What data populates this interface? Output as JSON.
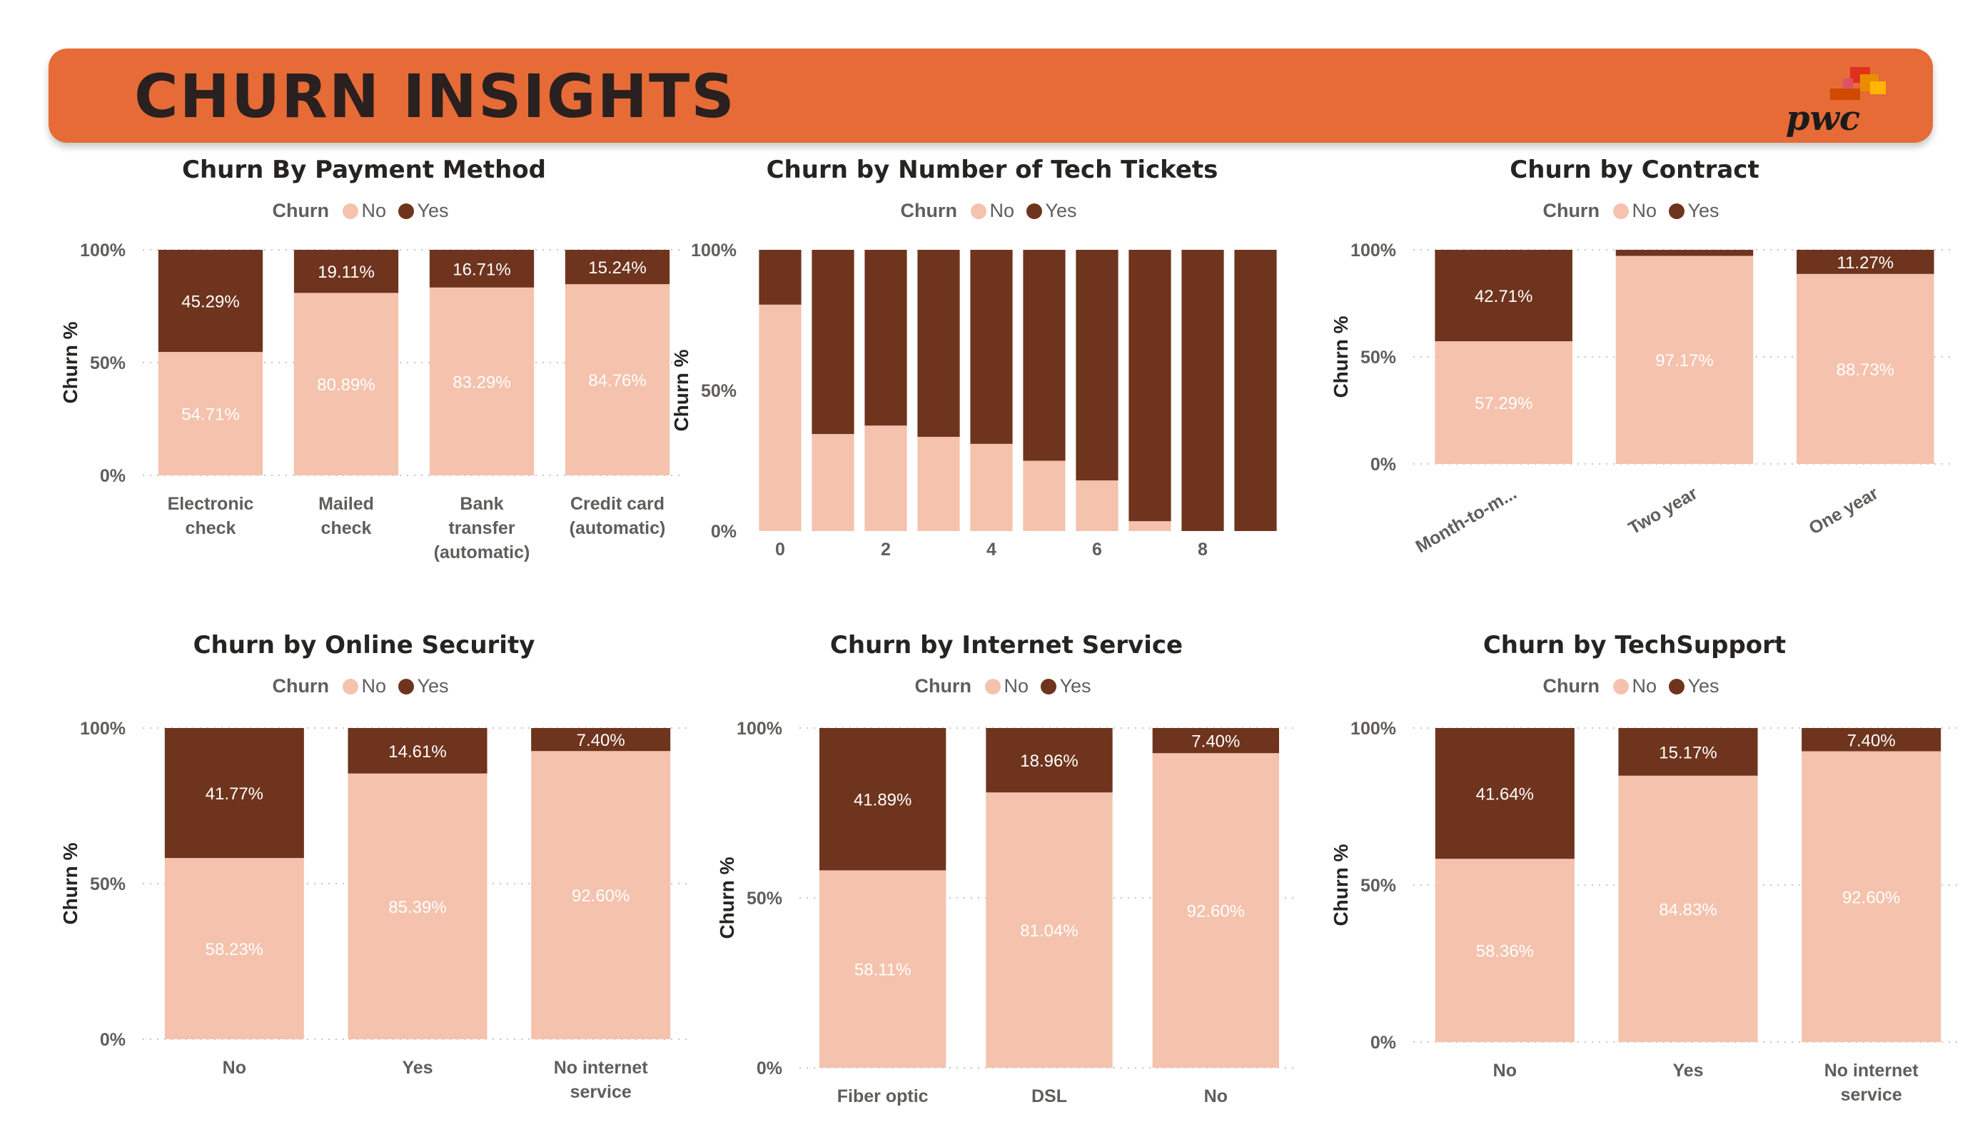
{
  "page": {
    "title": "CHURN INSIGHTS",
    "logo_text": "pwc"
  },
  "colors": {
    "header": "#e66b36",
    "no": "#f4c2ad",
    "yes": "#6f341d",
    "axis_text": "#605e5c"
  },
  "chart_data": [
    {
      "id": "payment",
      "type": "bar",
      "stacked": "100%",
      "title": "Churn By Payment Method",
      "legend_title": "Churn",
      "legend_position": "top-center",
      "ylabel": "Churn %",
      "yticks": [
        "0%",
        "50%",
        "100%"
      ],
      "ylim": [
        0,
        100
      ],
      "grid": "dotted-horizontal",
      "categories": [
        "Electronic check",
        "Mailed check",
        "Bank transfer (automatic)",
        "Credit card (automatic)"
      ],
      "category_lines": [
        [
          "Electronic",
          "check"
        ],
        [
          "Mailed",
          "check"
        ],
        [
          "Bank",
          "transfer",
          "(automatic)"
        ],
        [
          "Credit card",
          "(automatic)"
        ]
      ],
      "series": [
        {
          "name": "No",
          "values": [
            54.71,
            80.89,
            83.29,
            84.76
          ],
          "labels": [
            "54.71%",
            "80.89%",
            "83.29%",
            "84.76%"
          ]
        },
        {
          "name": "Yes",
          "values": [
            45.29,
            19.11,
            16.71,
            15.24
          ],
          "labels": [
            "45.29%",
            "19.11%",
            "16.71%",
            "15.24%"
          ]
        }
      ]
    },
    {
      "id": "tickets",
      "type": "bar",
      "stacked": "100%",
      "title": "Churn by Number of Tech Tickets",
      "legend_title": "Churn",
      "legend_position": "top-center",
      "ylabel": "Churn %",
      "yticks": [
        "0%",
        "50%",
        "100%"
      ],
      "ylim": [
        0,
        100
      ],
      "grid": "none",
      "categories": [
        "0",
        "1",
        "2",
        "3",
        "4",
        "5",
        "6",
        "7",
        "8",
        "9"
      ],
      "xticks_shown": [
        "0",
        "2",
        "4",
        "6",
        "8"
      ],
      "series": [
        {
          "name": "No",
          "values": [
            80.5,
            34.5,
            37.5,
            33.5,
            31,
            25,
            18,
            3.5,
            0,
            0
          ]
        },
        {
          "name": "Yes",
          "values": [
            19.5,
            65.5,
            62.5,
            66.5,
            69,
            75,
            82,
            96.5,
            100,
            100
          ]
        }
      ]
    },
    {
      "id": "contract",
      "type": "bar",
      "stacked": "100%",
      "title": "Churn by Contract",
      "legend_title": "Churn",
      "legend_position": "top-center",
      "ylabel": "Churn %",
      "yticks": [
        "0%",
        "50%",
        "100%"
      ],
      "ylim": [
        0,
        100
      ],
      "grid": "dotted-horizontal",
      "categories": [
        "Month-to-m...",
        "Two year",
        "One year"
      ],
      "rotated_xlabels": true,
      "series": [
        {
          "name": "No",
          "values": [
            57.29,
            97.17,
            88.73
          ],
          "labels": [
            "57.29%",
            "97.17%",
            "88.73%"
          ]
        },
        {
          "name": "Yes",
          "values": [
            42.71,
            2.83,
            11.27
          ],
          "labels": [
            "42.71%",
            "",
            "11.27%"
          ]
        }
      ]
    },
    {
      "id": "security",
      "type": "bar",
      "stacked": "100%",
      "title": "Churn by Online Security",
      "legend_title": "Churn",
      "legend_position": "top-center",
      "ylabel": "Churn %",
      "yticks": [
        "0%",
        "50%",
        "100%"
      ],
      "ylim": [
        0,
        100
      ],
      "grid": "dotted-horizontal",
      "categories": [
        "No",
        "Yes",
        "No internet service"
      ],
      "category_lines": [
        [
          "No"
        ],
        [
          "Yes"
        ],
        [
          "No internet",
          "service"
        ]
      ],
      "series": [
        {
          "name": "No",
          "values": [
            58.23,
            85.39,
            92.6
          ],
          "labels": [
            "58.23%",
            "85.39%",
            "92.60%"
          ]
        },
        {
          "name": "Yes",
          "values": [
            41.77,
            14.61,
            7.4
          ],
          "labels": [
            "41.77%",
            "14.61%",
            "7.40%"
          ]
        }
      ]
    },
    {
      "id": "internet",
      "type": "bar",
      "stacked": "100%",
      "title": "Churn by Internet Service",
      "legend_title": "Churn",
      "legend_position": "top-center",
      "ylabel": "Churn %",
      "yticks": [
        "0%",
        "50%",
        "100%"
      ],
      "ylim": [
        0,
        100
      ],
      "grid": "dotted-horizontal",
      "categories": [
        "Fiber optic",
        "DSL",
        "No"
      ],
      "series": [
        {
          "name": "No",
          "values": [
            58.11,
            81.04,
            92.6
          ],
          "labels": [
            "58.11%",
            "81.04%",
            "92.60%"
          ]
        },
        {
          "name": "Yes",
          "values": [
            41.89,
            18.96,
            7.4
          ],
          "labels": [
            "41.89%",
            "18.96%",
            "7.40%"
          ]
        }
      ]
    },
    {
      "id": "techsupport",
      "type": "bar",
      "stacked": "100%",
      "title": "Churn by TechSupport",
      "legend_title": "Churn",
      "legend_position": "top-center",
      "ylabel": "Churn %",
      "yticks": [
        "0%",
        "50%",
        "100%"
      ],
      "ylim": [
        0,
        100
      ],
      "grid": "dotted-horizontal",
      "categories": [
        "No",
        "Yes",
        "No internet service"
      ],
      "category_lines": [
        [
          "No"
        ],
        [
          "Yes"
        ],
        [
          "No internet",
          "service"
        ]
      ],
      "series": [
        {
          "name": "No",
          "values": [
            58.36,
            84.83,
            92.6
          ],
          "labels": [
            "58.36%",
            "84.83%",
            "92.60%"
          ]
        },
        {
          "name": "Yes",
          "values": [
            41.64,
            15.17,
            7.4
          ],
          "labels": [
            "41.64%",
            "15.17%",
            "7.40%"
          ]
        }
      ]
    }
  ]
}
